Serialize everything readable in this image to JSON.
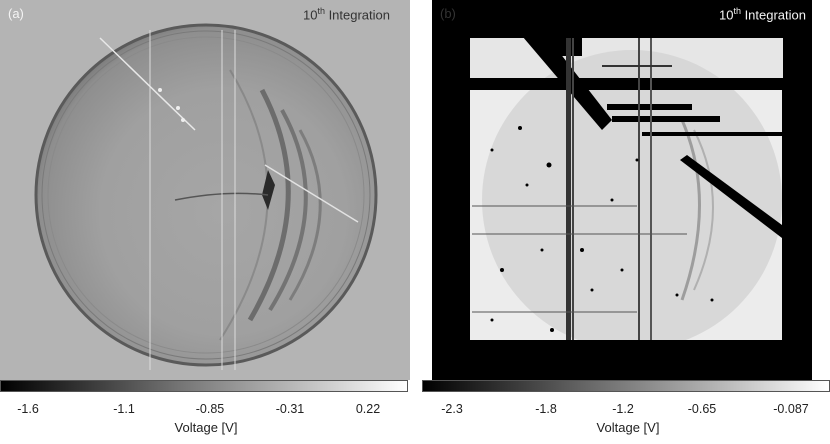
{
  "panels": [
    {
      "id": "a",
      "label": "(a)",
      "title_base": "10",
      "title_sup": "th",
      "title_rest": " Integration",
      "colorbar": {
        "ticks": [
          "-1.6",
          "-1.1",
          "-0.85",
          "-0.31",
          "0.22"
        ],
        "label": "Voltage [V]"
      }
    },
    {
      "id": "b",
      "label": "(b)",
      "title_base": "10",
      "title_sup": "th",
      "title_rest": " Integration",
      "colorbar": {
        "ticks": [
          "-2.3",
          "-1.8",
          "-1.2",
          "-0.65",
          "-0.087"
        ],
        "label": "Voltage [V]"
      }
    }
  ],
  "colors": {
    "colorbar_dark": "#000000",
    "colorbar_light": "#ffffff",
    "mask": "#000000"
  }
}
